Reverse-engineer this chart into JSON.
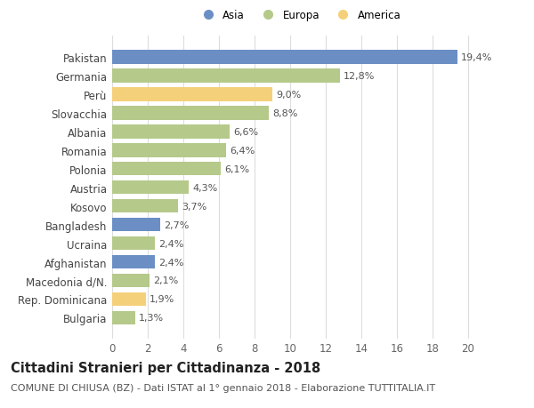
{
  "categories": [
    "Bulgaria",
    "Rep. Dominicana",
    "Macedonia d/N.",
    "Afghanistan",
    "Ucraina",
    "Bangladesh",
    "Kosovo",
    "Austria",
    "Polonia",
    "Romania",
    "Albania",
    "Slovacchia",
    "Perù",
    "Germania",
    "Pakistan"
  ],
  "values": [
    1.3,
    1.9,
    2.1,
    2.4,
    2.4,
    2.7,
    3.7,
    4.3,
    6.1,
    6.4,
    6.6,
    8.8,
    9.0,
    12.8,
    19.4
  ],
  "colors": [
    "#b5c98a",
    "#f5d07a",
    "#b5c98a",
    "#6b8fc4",
    "#b5c98a",
    "#6b8fc4",
    "#b5c98a",
    "#b5c98a",
    "#b5c98a",
    "#b5c98a",
    "#b5c98a",
    "#b5c98a",
    "#f5d07a",
    "#b5c98a",
    "#6b8fc4"
  ],
  "labels": [
    "1,3%",
    "1,9%",
    "2,1%",
    "2,4%",
    "2,4%",
    "2,7%",
    "3,7%",
    "4,3%",
    "6,1%",
    "6,4%",
    "6,6%",
    "8,8%",
    "9,0%",
    "12,8%",
    "19,4%"
  ],
  "legend": [
    {
      "label": "Asia",
      "color": "#6b8fc4"
    },
    {
      "label": "Europa",
      "color": "#b5c98a"
    },
    {
      "label": "America",
      "color": "#f5d07a"
    }
  ],
  "xlim": [
    0,
    21
  ],
  "xticks": [
    0,
    2,
    4,
    6,
    8,
    10,
    12,
    14,
    16,
    18,
    20
  ],
  "title": "Cittadini Stranieri per Cittadinanza - 2018",
  "subtitle": "COMUNE DI CHIUSA (BZ) - Dati ISTAT al 1° gennaio 2018 - Elaborazione TUTTITALIA.IT",
  "title_fontsize": 10.5,
  "subtitle_fontsize": 8.0,
  "label_fontsize": 8.0,
  "tick_fontsize": 8.5,
  "ytick_fontsize": 8.5,
  "bg_color": "#ffffff",
  "grid_color": "#dddddd",
  "bar_height": 0.75
}
